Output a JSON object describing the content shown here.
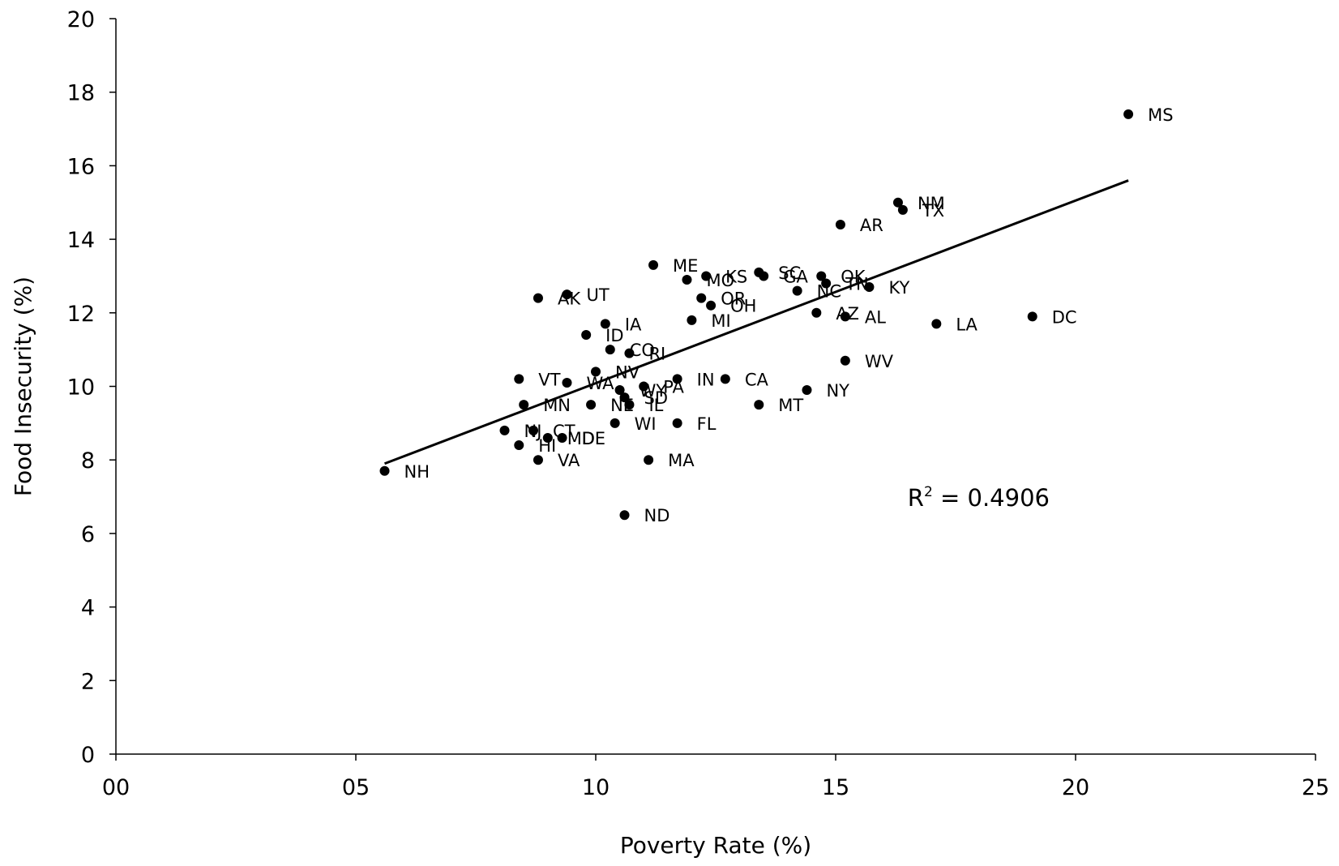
{
  "chart_data": {
    "type": "scatter",
    "title": "",
    "xlabel": "Poverty Rate (%)",
    "ylabel": "Food Insecurity (%)",
    "xlim": [
      0,
      25
    ],
    "ylim": [
      0,
      20
    ],
    "x_ticks": [
      {
        "value": 0,
        "label": "00"
      },
      {
        "value": 5,
        "label": "05"
      },
      {
        "value": 10,
        "label": "10"
      },
      {
        "value": 15,
        "label": "15"
      },
      {
        "value": 20,
        "label": "20"
      },
      {
        "value": 25,
        "label": "25"
      }
    ],
    "y_ticks": [
      {
        "value": 0,
        "label": "0"
      },
      {
        "value": 2,
        "label": "2"
      },
      {
        "value": 4,
        "label": "4"
      },
      {
        "value": 6,
        "label": "6"
      },
      {
        "value": 8,
        "label": "8"
      },
      {
        "value": 10,
        "label": "10"
      },
      {
        "value": 12,
        "label": "12"
      },
      {
        "value": 14,
        "label": "14"
      },
      {
        "value": 16,
        "label": "16"
      },
      {
        "value": 18,
        "label": "18"
      },
      {
        "value": 20,
        "label": "20"
      }
    ],
    "grid": false,
    "marker_color": "#000000",
    "points": [
      {
        "label": "NH",
        "x": 5.6,
        "y": 7.7
      },
      {
        "label": "MS",
        "x": 21.1,
        "y": 17.4
      },
      {
        "label": "NM",
        "x": 16.3,
        "y": 15.0
      },
      {
        "label": "TX",
        "x": 16.4,
        "y": 14.8
      },
      {
        "label": "AR",
        "x": 15.1,
        "y": 14.4
      },
      {
        "label": "ME",
        "x": 11.2,
        "y": 13.3
      },
      {
        "label": "MO",
        "x": 11.9,
        "y": 12.9
      },
      {
        "label": "KS",
        "x": 12.3,
        "y": 13.0
      },
      {
        "label": "SC",
        "x": 13.4,
        "y": 13.1
      },
      {
        "label": "GA",
        "x": 13.5,
        "y": 13.0
      },
      {
        "label": "OK",
        "x": 14.7,
        "y": 13.0
      },
      {
        "label": "TN",
        "x": 14.8,
        "y": 12.8
      },
      {
        "label": "KY",
        "x": 15.7,
        "y": 12.7
      },
      {
        "label": "NC",
        "x": 14.2,
        "y": 12.6
      },
      {
        "label": "AK",
        "x": 8.8,
        "y": 12.4
      },
      {
        "label": "UT",
        "x": 9.4,
        "y": 12.5
      },
      {
        "label": "OR",
        "x": 12.2,
        "y": 12.4
      },
      {
        "label": "OH",
        "x": 12.4,
        "y": 12.2
      },
      {
        "label": "AZ",
        "x": 14.6,
        "y": 12.0
      },
      {
        "label": "AL",
        "x": 15.2,
        "y": 11.9
      },
      {
        "label": "DC",
        "x": 19.1,
        "y": 11.9
      },
      {
        "label": "LA",
        "x": 17.1,
        "y": 11.7
      },
      {
        "label": "MI",
        "x": 12.0,
        "y": 11.8
      },
      {
        "label": "IA",
        "x": 10.2,
        "y": 11.7
      },
      {
        "label": "ID",
        "x": 9.8,
        "y": 11.4
      },
      {
        "label": "CO",
        "x": 10.3,
        "y": 11.0
      },
      {
        "label": "RI",
        "x": 10.7,
        "y": 10.9
      },
      {
        "label": "WV",
        "x": 15.2,
        "y": 10.7
      },
      {
        "label": "NV",
        "x": 10.0,
        "y": 10.4
      },
      {
        "label": "VT",
        "x": 8.4,
        "y": 10.2
      },
      {
        "label": "WA",
        "x": 9.4,
        "y": 10.1
      },
      {
        "label": "IN",
        "x": 11.7,
        "y": 10.2
      },
      {
        "label": "CA",
        "x": 12.7,
        "y": 10.2
      },
      {
        "label": "PA",
        "x": 11.0,
        "y": 10.0
      },
      {
        "label": "WY",
        "x": 10.5,
        "y": 9.9
      },
      {
        "label": "SD",
        "x": 10.6,
        "y": 9.7
      },
      {
        "label": "NY",
        "x": 14.4,
        "y": 9.9
      },
      {
        "label": "MN",
        "x": 8.5,
        "y": 9.5
      },
      {
        "label": "NE",
        "x": 9.9,
        "y": 9.5
      },
      {
        "label": "IL",
        "x": 10.7,
        "y": 9.5
      },
      {
        "label": "MT",
        "x": 13.4,
        "y": 9.5
      },
      {
        "label": "WI",
        "x": 10.4,
        "y": 9.0
      },
      {
        "label": "FL",
        "x": 11.7,
        "y": 9.0
      },
      {
        "label": "NJ",
        "x": 8.1,
        "y": 8.8
      },
      {
        "label": "CT",
        "x": 8.7,
        "y": 8.8
      },
      {
        "label": "MD",
        "x": 9.0,
        "y": 8.6
      },
      {
        "label": "DE",
        "x": 9.3,
        "y": 8.6
      },
      {
        "label": "HI",
        "x": 8.4,
        "y": 8.4
      },
      {
        "label": "VA",
        "x": 8.8,
        "y": 8.0
      },
      {
        "label": "MA",
        "x": 11.1,
        "y": 8.0
      },
      {
        "label": "ND",
        "x": 10.6,
        "y": 6.5
      }
    ],
    "trendline": {
      "x": [
        5.6,
        21.1
      ],
      "y": [
        7.9,
        15.6
      ]
    },
    "r_squared_label": {
      "prefix": "R",
      "sup": "2",
      "text": " = 0.4906"
    }
  }
}
